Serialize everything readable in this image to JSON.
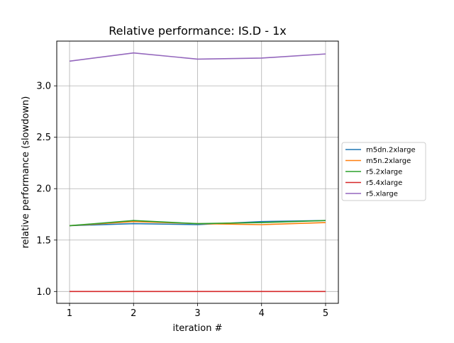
{
  "chart_data": {
    "type": "line",
    "title": "Relative performance: IS.D - 1x",
    "xlabel": "iteration #",
    "ylabel": "relative performance (slowdown)",
    "x": [
      1,
      2,
      3,
      4,
      5
    ],
    "xticks": [
      "1",
      "2",
      "3",
      "4",
      "5"
    ],
    "xlim": [
      0.8,
      5.2
    ],
    "ylim": [
      0.885,
      3.435
    ],
    "yticks": [
      "1.0",
      "1.5",
      "2.0",
      "2.5",
      "3.0"
    ],
    "grid": true,
    "legend_position": "center-right outside",
    "series": [
      {
        "name": "m5dn.2xlarge",
        "color": "#1f77b4",
        "values": [
          1.64,
          1.66,
          1.65,
          1.68,
          1.69
        ]
      },
      {
        "name": "m5n.2xlarge",
        "color": "#ff7f0e",
        "values": [
          1.64,
          1.68,
          1.66,
          1.65,
          1.67
        ]
      },
      {
        "name": "r5.2xlarge",
        "color": "#2ca02c",
        "values": [
          1.64,
          1.69,
          1.66,
          1.67,
          1.69
        ]
      },
      {
        "name": "r5.4xlarge",
        "color": "#d62728",
        "values": [
          1.0,
          1.0,
          1.0,
          1.0,
          1.0
        ]
      },
      {
        "name": "r5.xlarge",
        "color": "#9467bd",
        "values": [
          3.24,
          3.32,
          3.26,
          3.27,
          3.31
        ]
      }
    ]
  }
}
